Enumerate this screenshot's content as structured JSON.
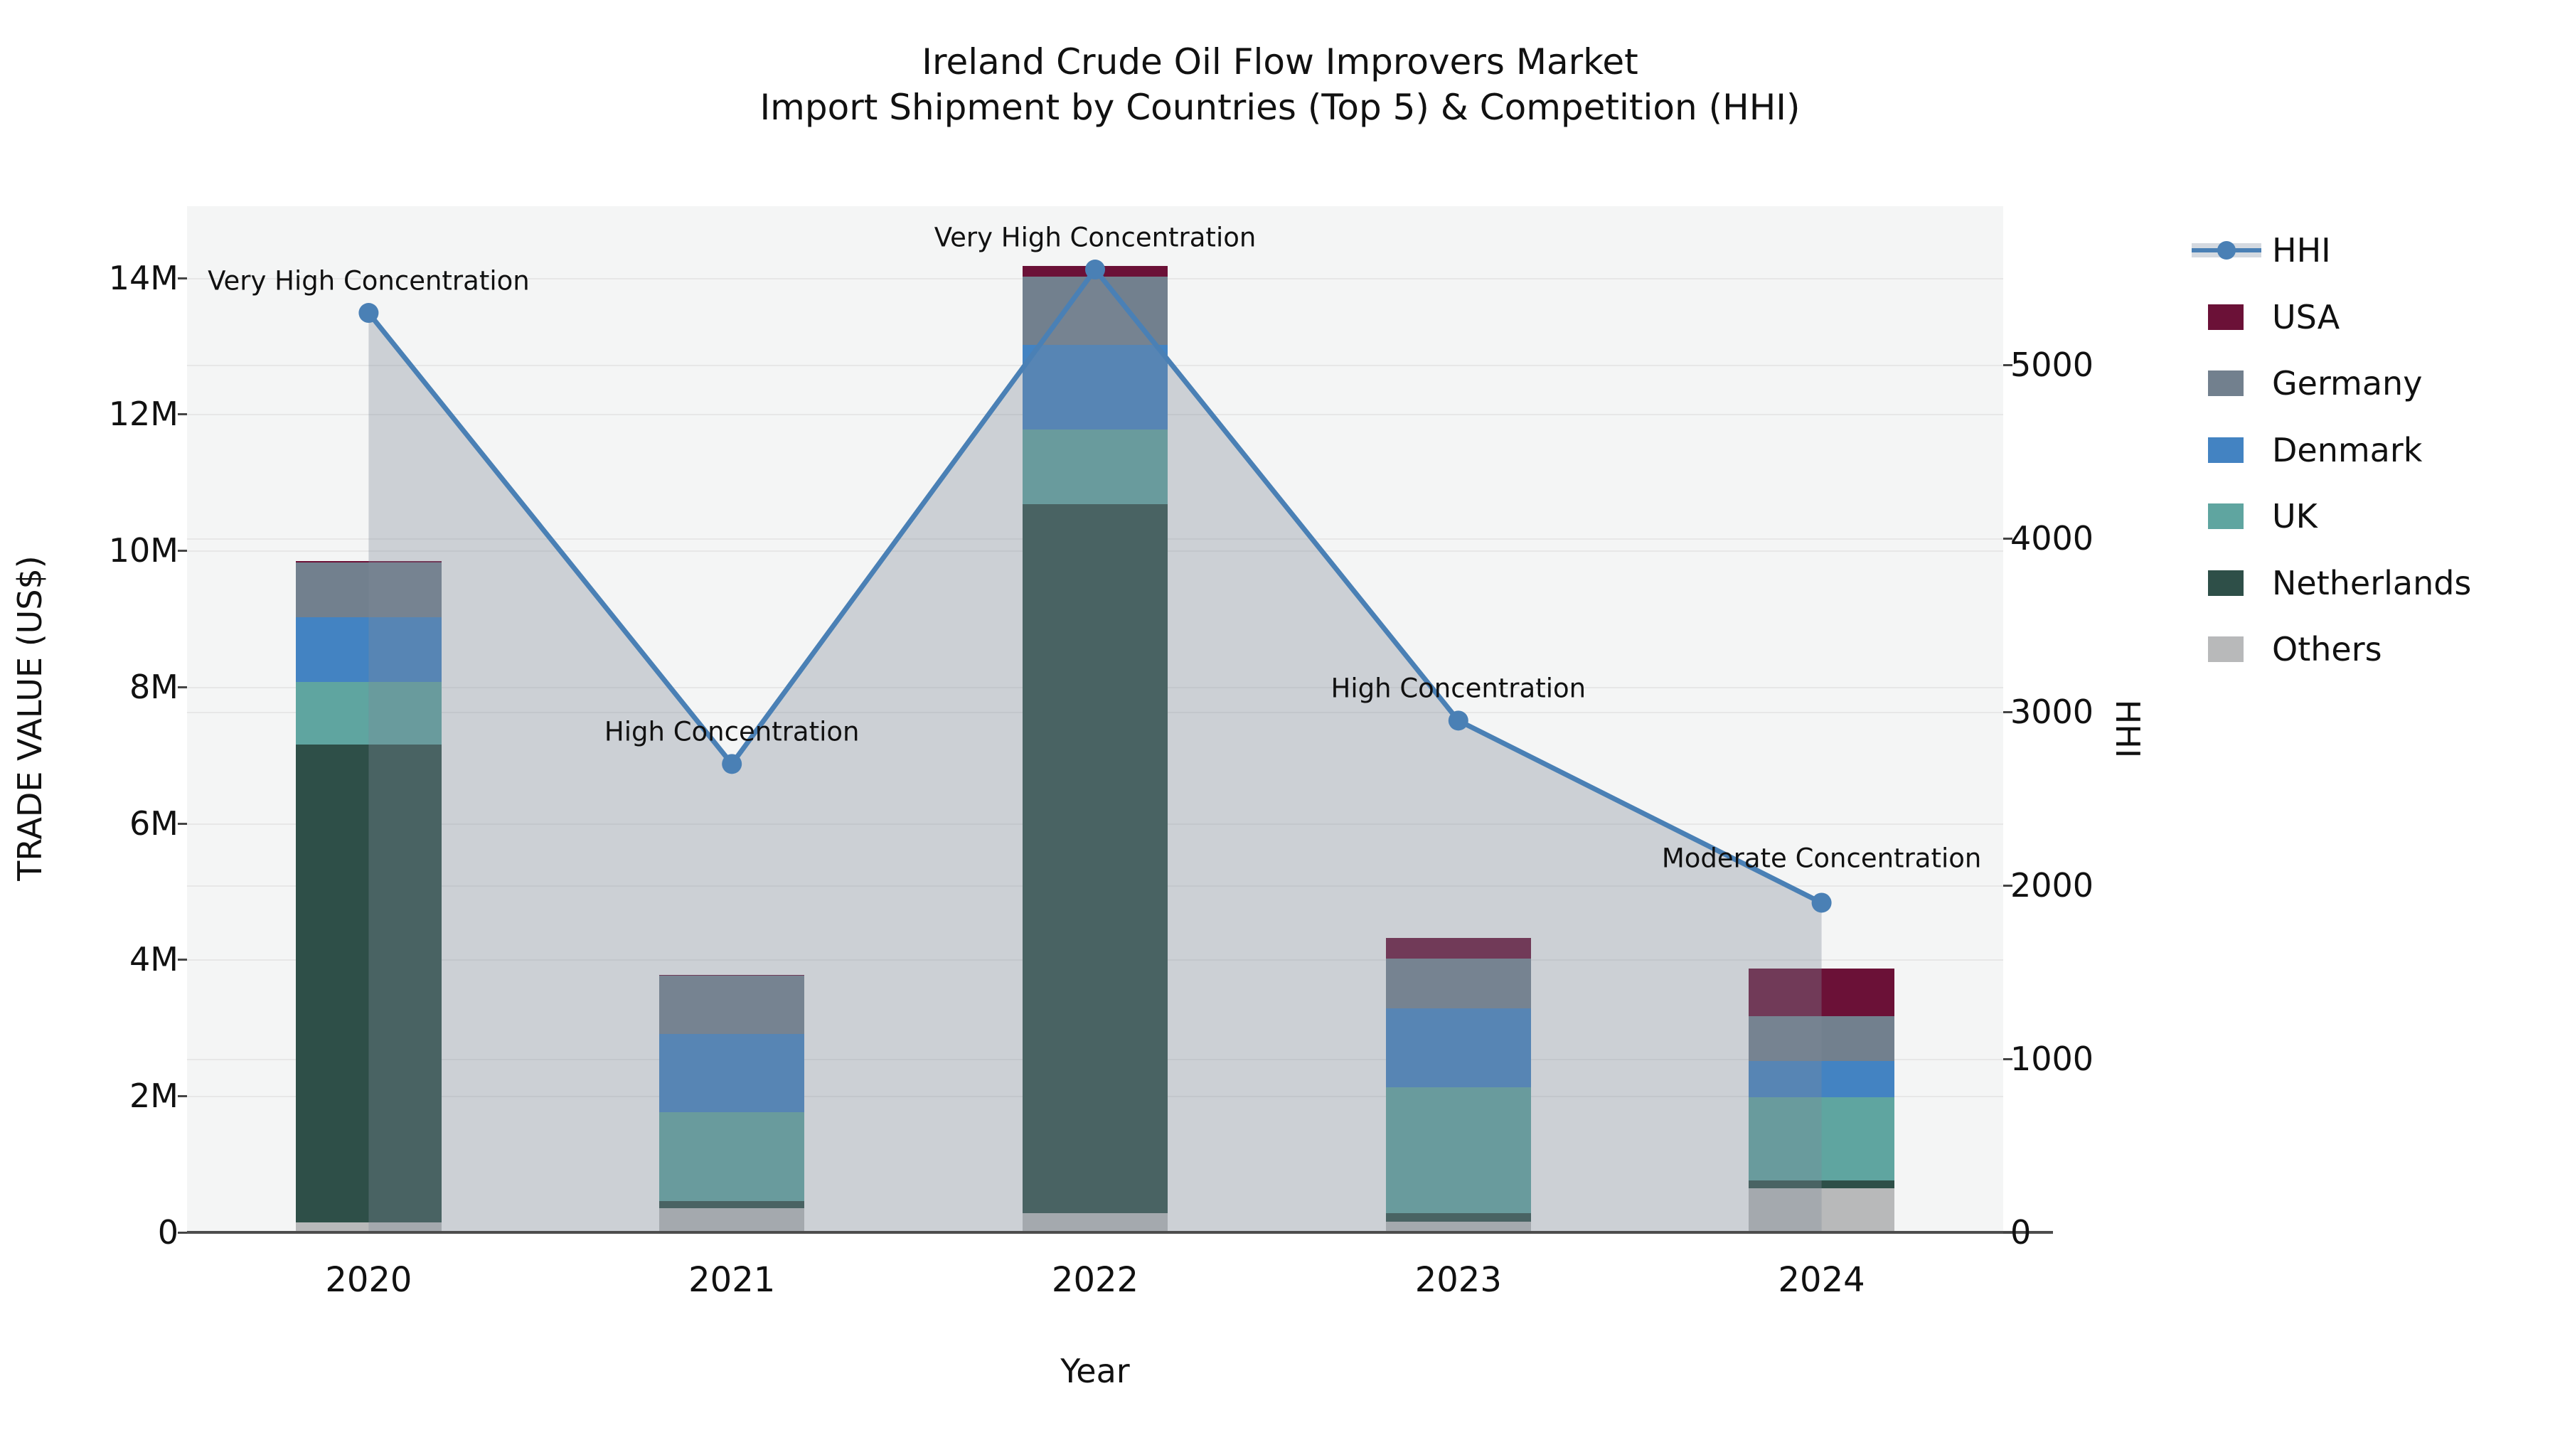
{
  "title": {
    "line1": "Ireland Crude Oil Flow Improvers Market",
    "line2": "Import Shipment by Countries (Top 5) & Competition (HHI)"
  },
  "axes": {
    "x_label": "Year",
    "y_left_label": "TRADE VALUE (US$)",
    "y_right_label": "HHI",
    "y_left_ticks": [
      {
        "label": "0",
        "value": 0
      },
      {
        "label": "2M",
        "value": 2
      },
      {
        "label": "4M",
        "value": 4
      },
      {
        "label": "6M",
        "value": 6
      },
      {
        "label": "8M",
        "value": 8
      },
      {
        "label": "10M",
        "value": 10
      },
      {
        "label": "12M",
        "value": 12
      },
      {
        "label": "14M",
        "value": 14
      }
    ],
    "y_right_ticks": [
      {
        "label": "0",
        "value": 0
      },
      {
        "label": "1000",
        "value": 1000
      },
      {
        "label": "2000",
        "value": 2000
      },
      {
        "label": "3000",
        "value": 3000
      },
      {
        "label": "4000",
        "value": 4000
      },
      {
        "label": "5000",
        "value": 5000
      }
    ]
  },
  "chart_data": {
    "type": "stacked_bar + line (dual y-axis)",
    "title": "Ireland Crude Oil Flow Improvers Market — Import Shipment by Countries (Top 5) & Competition (HHI)",
    "categories": [
      "2020",
      "2021",
      "2022",
      "2023",
      "2024"
    ],
    "bar_unit": "million US$",
    "stack_order_bottom_to_top": [
      "Others",
      "Netherlands",
      "UK",
      "Denmark",
      "Germany",
      "USA"
    ],
    "series": [
      {
        "name": "USA",
        "values": [
          0.03,
          0.02,
          0.15,
          0.3,
          0.7
        ]
      },
      {
        "name": "Germany",
        "values": [
          0.8,
          0.85,
          1.0,
          0.73,
          0.66
        ]
      },
      {
        "name": "Denmark",
        "values": [
          0.95,
          1.15,
          1.24,
          1.16,
          0.53
        ]
      },
      {
        "name": "UK",
        "values": [
          0.92,
          1.3,
          1.1,
          1.85,
          1.22
        ]
      },
      {
        "name": "Netherlands",
        "values": [
          7.0,
          0.11,
          10.4,
          0.12,
          0.11
        ]
      },
      {
        "name": "Others",
        "values": [
          0.15,
          0.35,
          0.28,
          0.16,
          0.65
        ]
      }
    ],
    "line_series": {
      "name": "HHI",
      "axis": "right",
      "values": [
        5300,
        2700,
        5550,
        2950,
        1900
      ],
      "area_fill": true
    },
    "annotations": [
      {
        "year": "2020",
        "text": "Very High Concentration"
      },
      {
        "year": "2021",
        "text": "High Concentration"
      },
      {
        "year": "2022",
        "text": "Very High Concentration"
      },
      {
        "year": "2023",
        "text": "High Concentration"
      },
      {
        "year": "2024",
        "text": "Moderate Concentration"
      }
    ],
    "ylim_left": [
      0,
      15.05
    ],
    "ylim_right": [
      0,
      5915
    ],
    "grid": true,
    "legend_position": "right"
  },
  "legend": {
    "items": [
      {
        "label": "HHI",
        "marker": "line"
      },
      {
        "label": "USA",
        "marker": "box"
      },
      {
        "label": "Germany",
        "marker": "box"
      },
      {
        "label": "Denmark",
        "marker": "box"
      },
      {
        "label": "UK",
        "marker": "box"
      },
      {
        "label": "Netherlands",
        "marker": "box"
      },
      {
        "label": "Others",
        "marker": "box"
      }
    ]
  },
  "colors": {
    "plot_background": "#f4f5f5",
    "gridline": "#e7e7e7",
    "axis_line": "#4d4d4d",
    "hhi_line": "#4a80b5",
    "hhi_area_fill": "rgba(125,139,153,0.34)",
    "series": {
      "USA": "#6b1137",
      "Germany": "#72808e",
      "Denmark": "#4383c2",
      "UK": "#5fa5a0",
      "Netherlands": "#2e4f48",
      "Others": "#b8b9ba"
    }
  }
}
